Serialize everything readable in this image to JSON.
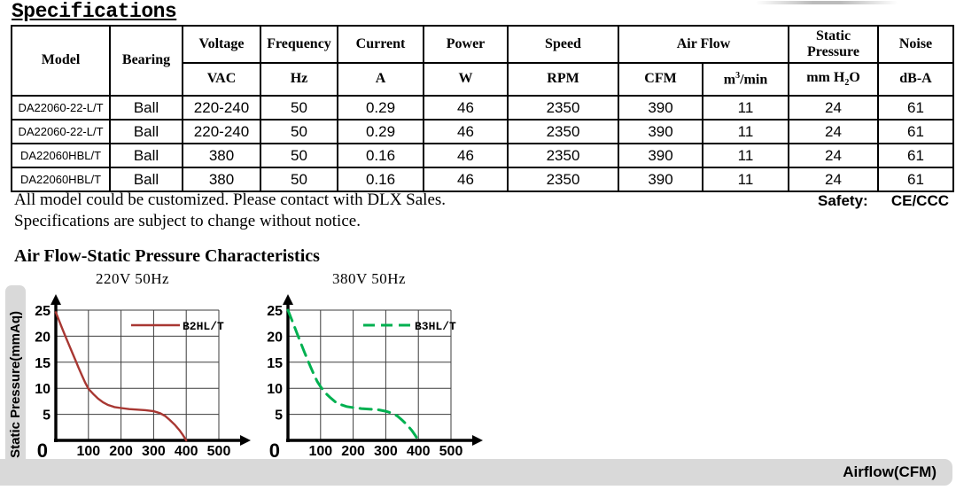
{
  "title": "Specifications",
  "table": {
    "header": {
      "model": "Model",
      "bearing": "Bearing",
      "voltage": "Voltage",
      "voltage_unit": "VAC",
      "frequency": "Frequency",
      "frequency_unit": "Hz",
      "current": "Current",
      "current_unit": "A",
      "power": "Power",
      "power_unit": "W",
      "speed": "Speed",
      "speed_unit": "RPM",
      "airflow": "Air Flow",
      "airflow_unit_cfm": "CFM",
      "m3_pre": "m",
      "m3_sup": "3",
      "m3_post": "/min",
      "static_pressure": "Static Pressure",
      "sp_pre": "mm H",
      "sp_sub": "2",
      "sp_post": "O",
      "noise": "Noise",
      "noise_unit": "dB-A"
    },
    "rows": [
      [
        "DA22060-22-L/T",
        "Ball",
        "220-240",
        "50",
        "0.29",
        "46",
        "2350",
        "390",
        "11",
        "24",
        "61"
      ],
      [
        "DA22060-22-L/T",
        "Ball",
        "220-240",
        "50",
        "0.29",
        "46",
        "2350",
        "390",
        "11",
        "24",
        "61"
      ],
      [
        "DA22060HBL/T",
        "Ball",
        "380",
        "50",
        "0.16",
        "46",
        "2350",
        "390",
        "11",
        "24",
        "61"
      ],
      [
        "DA22060HBL/T",
        "Ball",
        "380",
        "50",
        "0.16",
        "46",
        "2350",
        "390",
        "11",
        "24",
        "61"
      ]
    ]
  },
  "notes": [
    "All model could be customized. Please contact with DLX Sales.",
    "Specifications are subject to change without notice."
  ],
  "safety": {
    "label": "Safety:",
    "value": "CE/CCC"
  },
  "section_title": "Air Flow-Static Pressure Characteristics",
  "axis_bars": {
    "y_label": "Static Pressure(mmAq)",
    "x_label": "Airflow(CFM)"
  },
  "chart_data": [
    {
      "type": "line",
      "title": "220V 50Hz",
      "xlabel": "Airflow(CFM)",
      "ylabel": "Static Pressure(mmAq)",
      "xlim": [
        0,
        500
      ],
      "ylim": [
        0,
        25
      ],
      "xticks": [
        100,
        200,
        300,
        400,
        500
      ],
      "yticks": [
        5,
        10,
        15,
        20,
        25
      ],
      "grid": true,
      "legend_position": "top-right",
      "series": [
        {
          "name": "B2HL/T",
          "color": "#a83732",
          "dash": false,
          "points": [
            [
              0,
              24.6
            ],
            [
              10,
              23.0
            ],
            [
              20,
              21.4
            ],
            [
              30,
              19.9
            ],
            [
              40,
              18.4
            ],
            [
              50,
              16.9
            ],
            [
              60,
              15.4
            ],
            [
              70,
              13.9
            ],
            [
              80,
              12.5
            ],
            [
              90,
              11.1
            ],
            [
              100,
              9.9
            ],
            [
              115,
              8.9
            ],
            [
              130,
              8.0
            ],
            [
              145,
              7.3
            ],
            [
              160,
              6.8
            ],
            [
              180,
              6.4
            ],
            [
              200,
              6.2
            ],
            [
              225,
              6.0
            ],
            [
              250,
              5.9
            ],
            [
              275,
              5.8
            ],
            [
              300,
              5.6
            ],
            [
              320,
              5.2
            ],
            [
              335,
              4.7
            ],
            [
              350,
              3.9
            ],
            [
              365,
              3.0
            ],
            [
              380,
              1.9
            ],
            [
              390,
              1.0
            ],
            [
              400,
              0
            ]
          ]
        }
      ]
    },
    {
      "type": "line",
      "title": "380V 50Hz",
      "xlabel": "Airflow(CFM)",
      "ylabel": "Static Pressure(mmAq)",
      "xlim": [
        0,
        500
      ],
      "ylim": [
        0,
        25
      ],
      "xticks": [
        100,
        200,
        300,
        400,
        500
      ],
      "yticks": [
        5,
        10,
        15,
        20,
        25
      ],
      "grid": true,
      "legend_position": "top-right",
      "series": [
        {
          "name": "B3HL/T",
          "color": "#00b050",
          "dash": true,
          "points": [
            [
              0,
              25.0
            ],
            [
              10,
              23.4
            ],
            [
              20,
              21.8
            ],
            [
              30,
              20.2
            ],
            [
              40,
              18.6
            ],
            [
              50,
              17.0
            ],
            [
              60,
              15.5
            ],
            [
              70,
              14.0
            ],
            [
              80,
              12.6
            ],
            [
              90,
              11.3
            ],
            [
              100,
              10.3
            ],
            [
              115,
              9.1
            ],
            [
              130,
              8.2
            ],
            [
              145,
              7.4
            ],
            [
              160,
              6.9
            ],
            [
              180,
              6.5
            ],
            [
              200,
              6.3
            ],
            [
              225,
              6.1
            ],
            [
              250,
              6.0
            ],
            [
              275,
              5.9
            ],
            [
              300,
              5.6
            ],
            [
              320,
              5.2
            ],
            [
              335,
              4.7
            ],
            [
              350,
              3.9
            ],
            [
              365,
              3.0
            ],
            [
              380,
              1.9
            ],
            [
              390,
              1.0
            ],
            [
              400,
              0
            ]
          ]
        }
      ]
    }
  ]
}
